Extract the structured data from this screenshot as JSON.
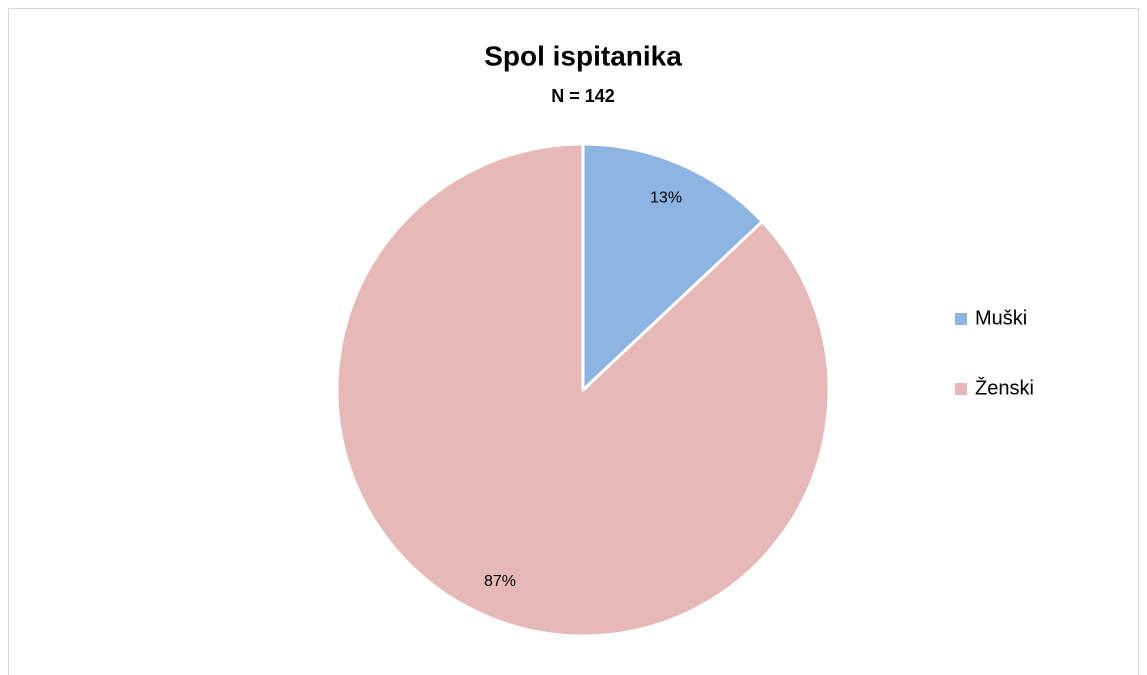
{
  "chart_data": {
    "type": "pie",
    "title": "Spol ispitanika",
    "subtitle": "N = 142",
    "categories": [
      "Muški",
      "Ženski"
    ],
    "values": [
      13,
      87
    ],
    "value_labels": [
      "13%",
      "87%"
    ],
    "colors": [
      "#8eb4e3",
      "#e6b9b8"
    ],
    "legend": "right"
  }
}
